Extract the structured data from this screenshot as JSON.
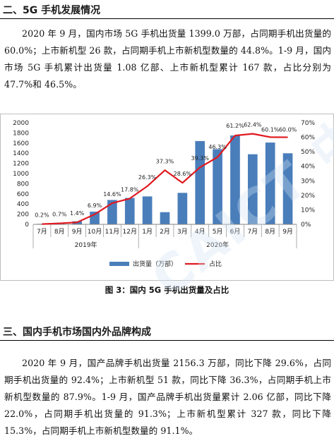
{
  "section1": {
    "heading": "二、5G 手机发展情况",
    "paragraph": "2020 年 9 月，国内市场 5G 手机出货量 1399.0 万部，占同期手机出货量的 60.0%；上市新机型 26 款，占同期手机上市新机型数量的 44.8%。1-9 月，国内市场 5G 手机累计出货量 1.08 亿部、上市新机型累计 167 款，占比分别为 47.7%和 46.5%。"
  },
  "figure": {
    "caption": "图 3：国内 5G 手机出货量及占比"
  },
  "section2": {
    "heading": "三、国内手机市场国内外品牌构成",
    "paragraph": "2020 年 9 月，国产品牌手机出货量 2156.3 万部，同比下降 29.6%，占同期手机出货量的 92.4%；上市新机型 51 款，同比下降 36.3%，占同期手机上市新机型数量的 87.9%。1-9 月，国产品牌手机出货量累计 2.06 亿部，同比下降 22.0%，占同期手机出货量的 91.3%；上市新机型累计 327 款，同比下降 15.3%，占同期手机上市新机型数量的 91.1%。"
  },
  "watermark": "CAICT 中国信通院",
  "chart_data": {
    "type": "bar",
    "categories": [
      "7月",
      "8月",
      "9月",
      "10月",
      "11月",
      "12月",
      "1月",
      "2月",
      "3月",
      "4月",
      "5月",
      "6月",
      "7月",
      "8月",
      "9月"
    ],
    "year_groups": [
      {
        "label": "2019年",
        "count": 6
      },
      {
        "label": "2020年",
        "count": 9
      }
    ],
    "series": [
      {
        "name": "出货量（万部）",
        "type": "bar",
        "axis": "left",
        "color": "#4a7ebb",
        "values": [
          10,
          30,
          60,
          250,
          480,
          520,
          550,
          240,
          620,
          1640,
          1480,
          1750,
          1380,
          1610,
          1399
        ]
      },
      {
        "name": "占比",
        "type": "line",
        "axis": "right",
        "color": "#e0191f",
        "values": [
          0.2,
          0.7,
          1.4,
          6.9,
          14.6,
          17.8,
          26.3,
          37.3,
          28.6,
          39.3,
          46.3,
          61.2,
          62.4,
          60.1,
          60.0
        ],
        "labels": [
          "0.2%",
          "0.7%",
          "1.4%",
          "6.9%",
          "14.6%",
          "17.8%",
          "26.3%",
          "37.3%",
          "28.6%",
          "39.3%",
          "46.3%",
          "61.2%",
          "62.4%",
          "60.1%",
          "60.0%"
        ]
      }
    ],
    "left_axis": {
      "ylim": [
        0,
        2000
      ],
      "ticks": [
        "0",
        "200",
        "400",
        "600",
        "800",
        "1000",
        "1200",
        "1400",
        "1600",
        "1800",
        "2000"
      ]
    },
    "right_axis": {
      "ylim": [
        0,
        70
      ],
      "ticks": [
        "0%",
        "10%",
        "20%",
        "30%",
        "40%",
        "50%",
        "60%",
        "70%"
      ]
    },
    "legend_position": "bottom"
  }
}
